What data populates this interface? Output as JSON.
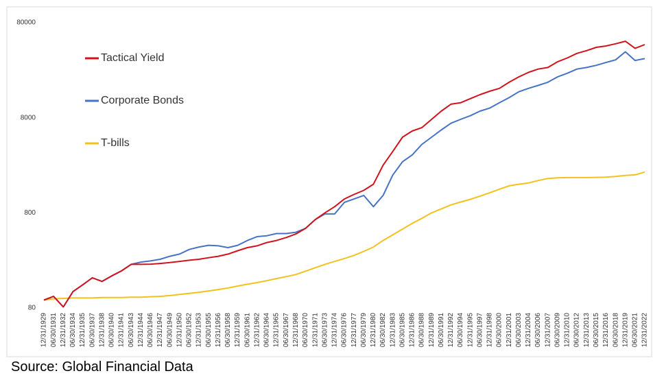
{
  "chart_data": {
    "type": "line",
    "source": "Source: Global Financial Data",
    "categories": [
      "12/31/1929",
      "06/30/1931",
      "12/31/1932",
      "06/30/1934",
      "12/31/1935",
      "06/30/1937",
      "12/31/1938",
      "06/30/1940",
      "12/31/1941",
      "06/30/1943",
      "12/31/1944",
      "06/30/1946",
      "12/31/1947",
      "06/30/1949",
      "12/31/1950",
      "06/30/1952",
      "12/31/1953",
      "06/30/1955",
      "12/31/1956",
      "06/30/1958",
      "12/31/1959",
      "06/30/1961",
      "12/31/1962",
      "06/30/1964",
      "12/31/1965",
      "06/30/1967",
      "12/31/1968",
      "06/30/1970",
      "12/31/1971",
      "06/30/1973",
      "12/31/1974",
      "06/30/1976",
      "12/31/1977",
      "06/30/1979",
      "12/31/1980",
      "06/30/1982",
      "12/31/1983",
      "06/30/1985",
      "12/31/1986",
      "06/30/1988",
      "12/31/1989",
      "06/30/1991",
      "12/31/1992",
      "06/30/1994",
      "12/31/1995",
      "06/30/1997",
      "12/31/1998",
      "06/30/2000",
      "12/31/2001",
      "06/30/2003",
      "12/31/2004",
      "06/30/2006",
      "12/31/2007",
      "06/30/2009",
      "12/31/2010",
      "06/30/2012",
      "12/31/2013",
      "06/30/2015",
      "12/31/2016",
      "06/30/2018",
      "12/31/2019",
      "06/30/2021",
      "12/31/2022"
    ],
    "series": [
      {
        "name": "Tactical Yield",
        "color": "#d0121b",
        "values": [
          97,
          106,
          82,
          119,
          140,
          166,
          152,
          174,
          196,
          230,
          230,
          231,
          235,
          240,
          247,
          254,
          260,
          270,
          280,
          295,
          320,
          345,
          360,
          390,
          410,
          440,
          480,
          550,
          680,
          800,
          930,
          1120,
          1250,
          1380,
          1600,
          2540,
          3540,
          5000,
          5800,
          6300,
          7700,
          9400,
          11100,
          11500,
          12700,
          14000,
          15200,
          16300,
          18900,
          21500,
          24000,
          26000,
          27000,
          31000,
          34000,
          38000,
          40600,
          44000,
          45500,
          48000,
          51000,
          43000,
          47000
        ]
      },
      {
        "name": "Corporate Bonds",
        "color": "#4472c4",
        "values": [
          97,
          106,
          82,
          119,
          140,
          166,
          152,
          174,
          196,
          230,
          243,
          250,
          260,
          280,
          295,
          330,
          350,
          365,
          360,
          345,
          365,
          410,
          450,
          460,
          485,
          485,
          500,
          550,
          680,
          780,
          780,
          1030,
          1120,
          1220,
          930,
          1220,
          2000,
          2760,
          3250,
          4200,
          5000,
          5950,
          7000,
          7700,
          8400,
          9400,
          10100,
          11500,
          13000,
          15000,
          16300,
          17500,
          18900,
          21500,
          23500,
          26000,
          27000,
          28500,
          30500,
          32500,
          39500,
          32000,
          33500
        ]
      },
      {
        "name": "T-bills",
        "color": "#f2c11b",
        "values": [
          97,
          100,
          101,
          102,
          102,
          102,
          103,
          103,
          103,
          104,
          104,
          105,
          106,
          108,
          111,
          114,
          117,
          121,
          125,
          130,
          136,
          142,
          148,
          155,
          163,
          171,
          180,
          195,
          212,
          230,
          247,
          265,
          286,
          315,
          350,
          410,
          470,
          540,
          620,
          700,
          800,
          880,
          970,
          1040,
          1110,
          1200,
          1300,
          1420,
          1540,
          1600,
          1650,
          1750,
          1840,
          1870,
          1880,
          1880,
          1880,
          1890,
          1900,
          1930,
          1980,
          2010,
          2150
        ]
      }
    ],
    "yscale": "log",
    "ylim": [
      80,
      80000
    ],
    "yticks": [
      80,
      800,
      8000,
      80000
    ],
    "grid": false,
    "legend": "upper left"
  }
}
